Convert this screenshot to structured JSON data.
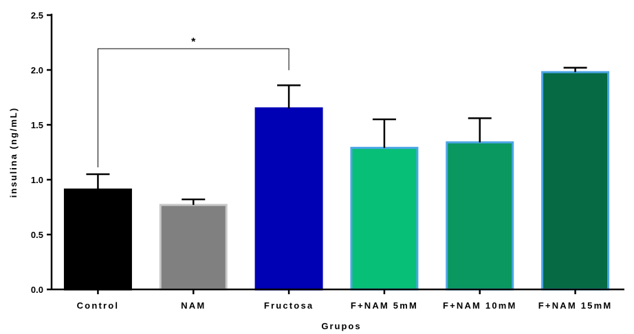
{
  "chart_data": {
    "type": "bar",
    "title": "",
    "xlabel": "Grupos",
    "ylabel": "insulina (ng/mL)",
    "ylim": [
      0,
      2.5
    ],
    "yticks": [
      0.0,
      0.5,
      1.0,
      1.5,
      2.0,
      2.5
    ],
    "ytick_labels": [
      "0.0",
      "0.5",
      "1.0",
      "1.5",
      "2.0",
      "2.5"
    ],
    "categories": [
      "Control",
      "NAM",
      "Fructosa",
      "F+NAM 5mM",
      "F+NAM 10mM",
      "F+NAM 15mM"
    ],
    "values": [
      0.91,
      0.77,
      1.65,
      1.29,
      1.34,
      1.98
    ],
    "error_upper": [
      0.14,
      0.05,
      0.21,
      0.26,
      0.22,
      0.04
    ],
    "colors": [
      "#000000",
      "#808080",
      "#0000b5",
      "#08bf78",
      "#0a9760",
      "#066a44"
    ],
    "edge_colors": [
      "#000000",
      "#c8c8c8",
      "#0000b5",
      "#4da6e6",
      "#4da6e6",
      "#4da6e6"
    ],
    "grid": false,
    "legend": "none",
    "annotations": [
      {
        "type": "significance",
        "from": "Control",
        "to": "Fructosa",
        "label": "*"
      }
    ]
  }
}
